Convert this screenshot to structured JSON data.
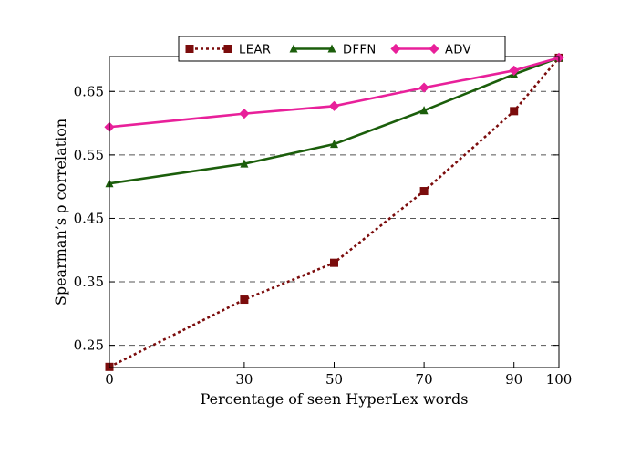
{
  "chart_data": {
    "type": "line",
    "title": "",
    "xlabel": "Percentage of seen HyperLex words",
    "ylabel": "Spearman’s ρ correlation",
    "x": [
      0,
      30,
      50,
      70,
      90,
      100
    ],
    "xticks": [
      "0",
      "30",
      "50",
      "70",
      "90",
      "100"
    ],
    "yticks": [
      "0.25",
      "0.35",
      "0.45",
      "0.55",
      "0.65"
    ],
    "xlim": [
      0,
      100
    ],
    "ylim": [
      0.215,
      0.705
    ],
    "grid": "horizontal dashed",
    "legend_position": "top-center",
    "series": [
      {
        "name": "LEAR",
        "color": "#7b0c0c",
        "marker": "square",
        "linestyle": "dotted",
        "values": [
          0.216,
          0.322,
          0.38,
          0.493,
          0.619,
          0.703
        ]
      },
      {
        "name": "DFFN",
        "color": "#1b5e0b",
        "marker": "triangle",
        "linestyle": "solid",
        "values": [
          0.505,
          0.536,
          0.567,
          0.62,
          0.677,
          0.703
        ]
      },
      {
        "name": "ADV",
        "color": "#e8209a",
        "marker": "diamond",
        "linestyle": "solid",
        "values": [
          0.594,
          0.615,
          0.627,
          0.656,
          0.683,
          0.703
        ]
      }
    ]
  }
}
